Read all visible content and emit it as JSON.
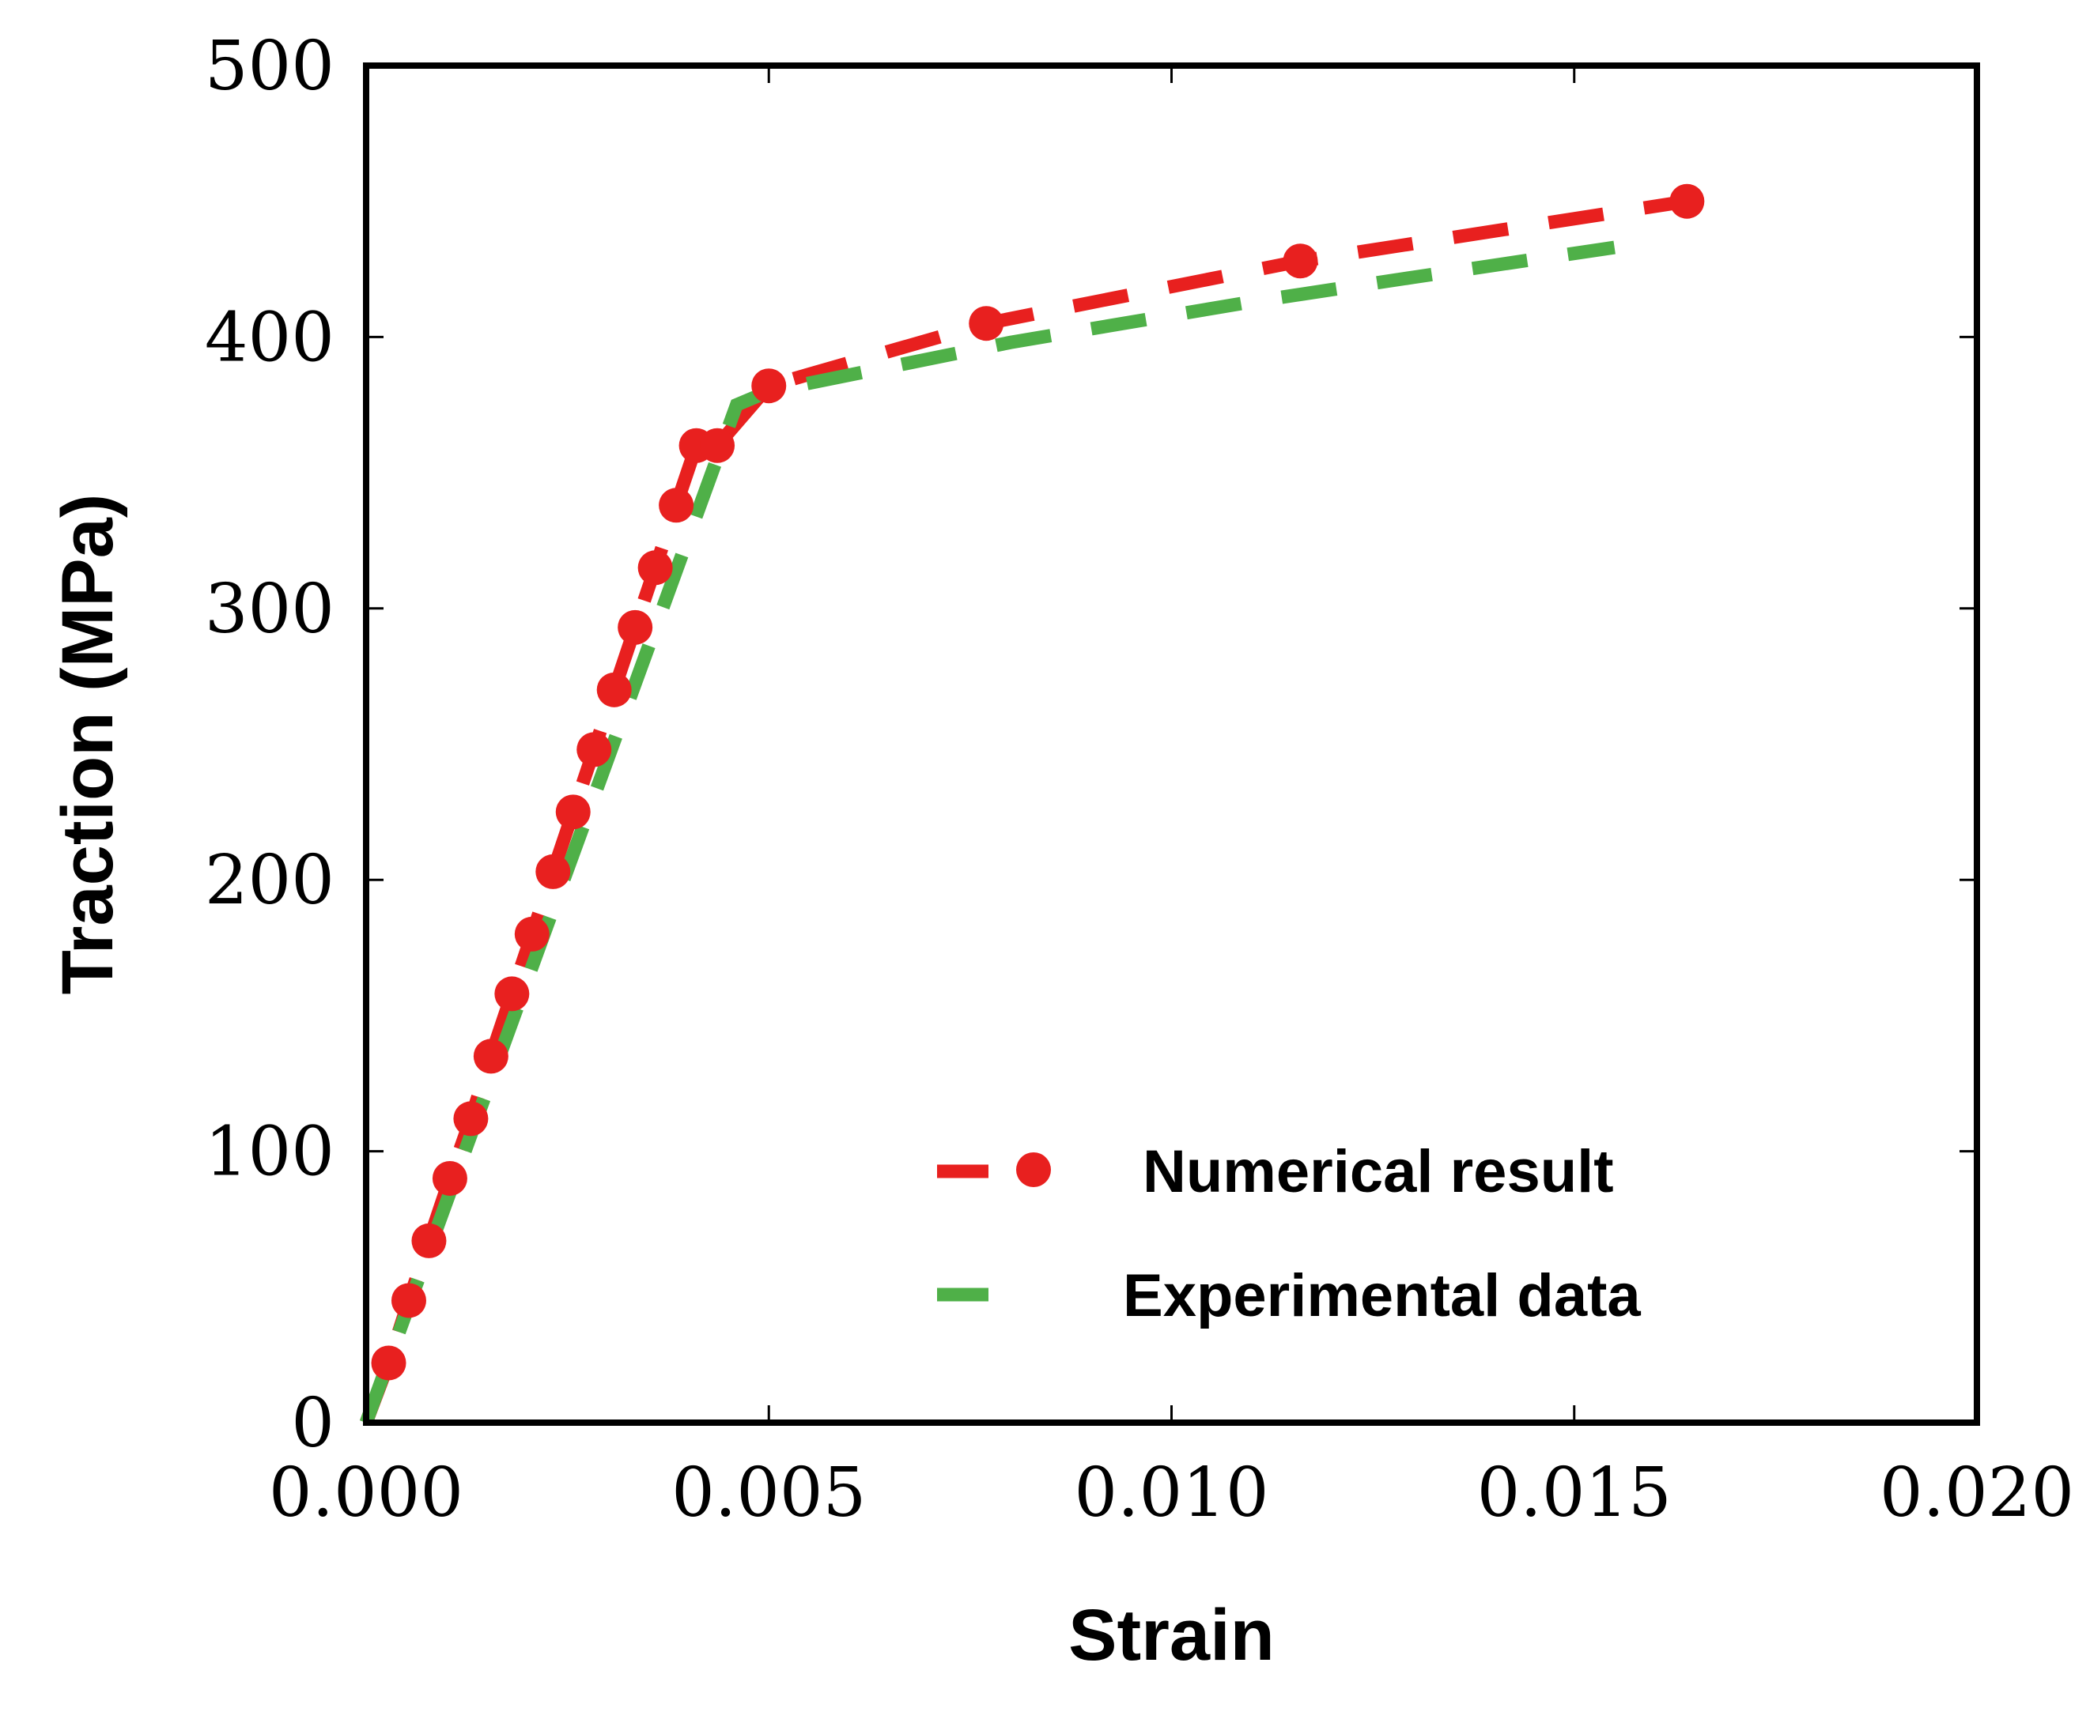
{
  "chart_data": {
    "type": "line",
    "title": "",
    "xlabel": "Strain",
    "ylabel": "Traction (MPa)",
    "xlim": [
      0,
      0.02
    ],
    "ylim": [
      0,
      500
    ],
    "xticks": [
      0,
      0.005,
      0.01,
      0.015,
      0.02
    ],
    "xtick_labels": [
      "0.000",
      "0.005",
      "0.010",
      "0.015",
      "0.020"
    ],
    "yticks": [
      0,
      100,
      200,
      300,
      400,
      500
    ],
    "ytick_labels": [
      "0",
      "100",
      "200",
      "300",
      "400",
      "500"
    ],
    "grid": false,
    "legend_position": "lower-right",
    "series": [
      {
        "name": "Numerical result",
        "color": "#e8201f",
        "style": "dashed-with-markers",
        "x": [
          0.00028,
          0.00053,
          0.00078,
          0.00104,
          0.0013,
          0.00155,
          0.00181,
          0.00206,
          0.00232,
          0.00257,
          0.00283,
          0.00308,
          0.00334,
          0.00359,
          0.00385,
          0.0041,
          0.00436,
          0.005,
          0.0077,
          0.0116,
          0.0164
        ],
        "y": [
          22,
          45,
          67,
          90,
          112,
          135,
          158,
          180,
          203,
          225,
          248,
          270,
          293,
          315,
          338,
          360,
          360,
          382,
          405,
          428,
          450
        ]
      },
      {
        "name": "Experimental data",
        "color": "#4fb048",
        "style": "dashed",
        "x": [
          0,
          0.0046,
          0.005,
          0.008,
          0.011,
          0.013,
          0.0155
        ],
        "y": [
          0,
          375,
          380,
          398,
          413,
          422,
          433
        ]
      }
    ]
  }
}
